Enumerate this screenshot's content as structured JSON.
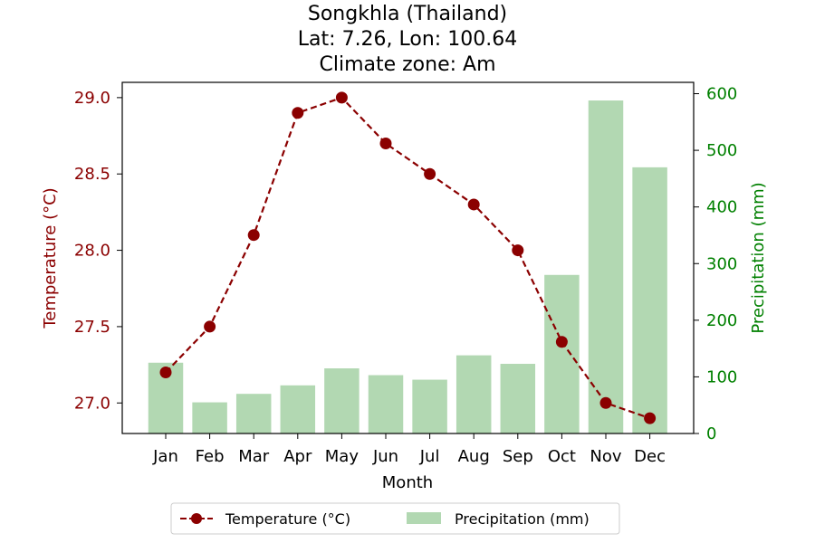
{
  "chart_data": {
    "type": "bar+line",
    "title_lines": [
      "Songkhla (Thailand)",
      "Lat: 7.26, Lon: 100.64",
      "Climate zone: Am"
    ],
    "categories": [
      "Jan",
      "Feb",
      "Mar",
      "Apr",
      "May",
      "Jun",
      "Jul",
      "Aug",
      "Sep",
      "Oct",
      "Nov",
      "Dec"
    ],
    "xlabel": "Month",
    "temperature": {
      "name": "Temperature (°C)",
      "axis_label": "Temperature (°C)",
      "values": [
        27.2,
        27.5,
        28.1,
        28.9,
        29.0,
        28.7,
        28.5,
        28.3,
        28.0,
        27.4,
        27.0,
        26.9
      ],
      "ylim": [
        26.8,
        29.1
      ],
      "ticks": [
        27.0,
        27.5,
        28.0,
        28.5,
        29.0
      ],
      "tick_labels": [
        "27.0",
        "27.5",
        "28.0",
        "28.5",
        "29.0"
      ],
      "color": "#8b0000",
      "line_style": "dashed",
      "marker": "circle"
    },
    "precipitation": {
      "name": "Precipitation (mm)",
      "axis_label": "Precipitation (mm)",
      "values": [
        125,
        55,
        70,
        85,
        115,
        103,
        95,
        138,
        123,
        280,
        588,
        470
      ],
      "ylim": [
        0,
        620
      ],
      "ticks": [
        0,
        100,
        200,
        300,
        400,
        500,
        600
      ],
      "tick_labels": [
        "0",
        "100",
        "200",
        "300",
        "400",
        "500",
        "600"
      ],
      "bar_color": "#b2d8b2",
      "axis_color": "#008000"
    },
    "legend_position": "bottom-center",
    "grid": false
  }
}
